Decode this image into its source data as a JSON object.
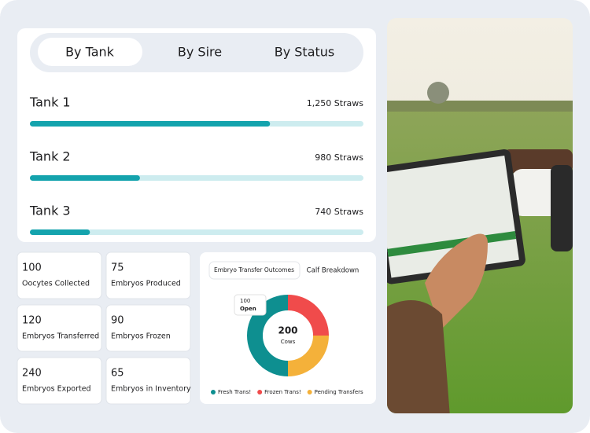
{
  "tabs": [
    "By Tank",
    "By Sire",
    "By Status"
  ],
  "tanks": [
    {
      "name": "Tank 1",
      "straws": "1,250 Straws",
      "fill": 72
    },
    {
      "name": "Tank 2",
      "straws": "980 Straws",
      "fill": 33
    },
    {
      "name": "Tank 3",
      "straws": "740 Straws",
      "fill": 18
    }
  ],
  "stats": [
    {
      "value": 100,
      "label": "Oocytes Collected"
    },
    {
      "value": 75,
      "label": "Embryos Produced"
    },
    {
      "value": 120,
      "label": "Embryos Transferred"
    },
    {
      "value": 90,
      "label": "Embryos Frozen"
    },
    {
      "value": 240,
      "label": "Embryos Exported"
    },
    {
      "value": 65,
      "label": "Embryos in Inventory"
    }
  ],
  "donut": {
    "tabs": [
      "Embryo Transfer Outcomes",
      "Calf Breakdown"
    ],
    "tooltip": {
      "value": 100,
      "label": "Open"
    },
    "total": 200,
    "total_label": "Cows",
    "segments": [
      {
        "name": "Fresh Trans!",
        "value": 100,
        "color": "#0e8f90"
      },
      {
        "name": "Frozen Trans!",
        "value": 50,
        "color": "#f04b4b"
      },
      {
        "name": "Pending Transfers",
        "value": 50,
        "color": "#f4b13a"
      }
    ]
  }
}
